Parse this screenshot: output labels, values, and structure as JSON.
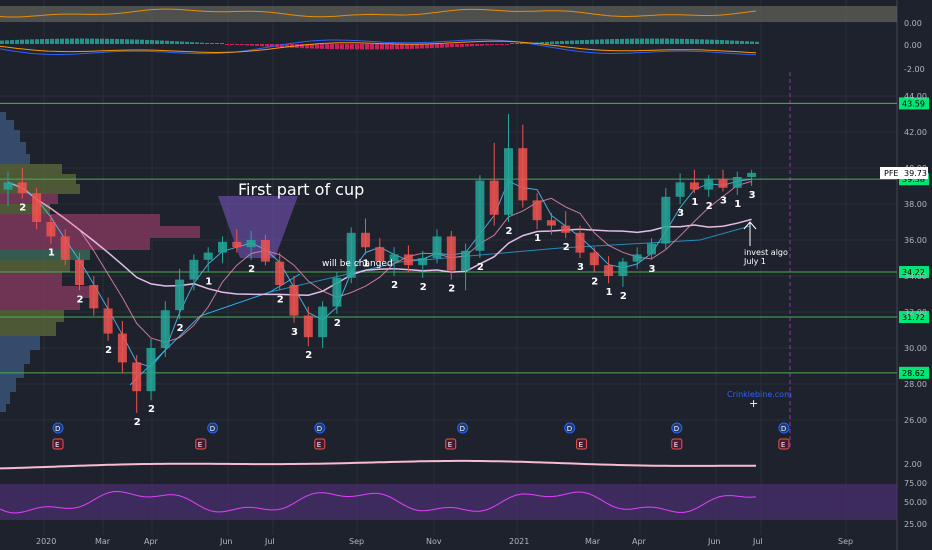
{
  "chart_data": {
    "type": "candlestick",
    "symbol": "PFE",
    "price_axis": {
      "ylim": [
        25.0,
        45.0
      ],
      "ticks": [
        44.0,
        42.0,
        40.0,
        38.0,
        36.0,
        34.0,
        32.0,
        30.0,
        28.0,
        26.0
      ]
    },
    "time_axis": {
      "labels": [
        "2020",
        "Mar",
        "Apr",
        "Jun",
        "Jul",
        "Sep",
        "Nov",
        "2021",
        "Mar",
        "Apr",
        "Jun",
        "Jul",
        "Sep"
      ]
    },
    "horizontal_levels": [
      {
        "value": 43.59,
        "label": "43.59"
      },
      {
        "value": 39.38,
        "label": "39.38"
      },
      {
        "value": 34.22,
        "label": "34.22"
      },
      {
        "value": 31.72,
        "label": "31.72"
      },
      {
        "value": 28.62,
        "label": "28.62"
      }
    ],
    "last_price": {
      "symbol": "PFE",
      "value": "39.73"
    },
    "candles": [
      {
        "t": 0,
        "o": 38.8,
        "h": 39.8,
        "l": 37.9,
        "c": 39.2
      },
      {
        "t": 1,
        "o": 39.2,
        "h": 40.0,
        "l": 38.3,
        "c": 38.6
      },
      {
        "t": 2,
        "o": 38.6,
        "h": 38.9,
        "l": 36.6,
        "c": 37.0
      },
      {
        "t": 3,
        "o": 37.0,
        "h": 37.4,
        "l": 35.8,
        "c": 36.2
      },
      {
        "t": 4,
        "o": 36.2,
        "h": 36.6,
        "l": 34.6,
        "c": 34.9
      },
      {
        "t": 5,
        "o": 34.9,
        "h": 35.3,
        "l": 33.2,
        "c": 33.5
      },
      {
        "t": 6,
        "o": 33.5,
        "h": 34.0,
        "l": 31.8,
        "c": 32.2
      },
      {
        "t": 7,
        "o": 32.2,
        "h": 32.8,
        "l": 30.4,
        "c": 30.8
      },
      {
        "t": 8,
        "o": 30.8,
        "h": 31.5,
        "l": 28.6,
        "c": 29.2
      },
      {
        "t": 9,
        "o": 29.2,
        "h": 29.6,
        "l": 26.4,
        "c": 27.6
      },
      {
        "t": 10,
        "o": 27.6,
        "h": 30.5,
        "l": 27.1,
        "c": 30.0
      },
      {
        "t": 11,
        "o": 30.0,
        "h": 32.6,
        "l": 29.5,
        "c": 32.1
      },
      {
        "t": 12,
        "o": 32.1,
        "h": 34.4,
        "l": 31.6,
        "c": 33.8
      },
      {
        "t": 13,
        "o": 33.8,
        "h": 35.2,
        "l": 33.2,
        "c": 34.9
      },
      {
        "t": 14,
        "o": 34.9,
        "h": 35.6,
        "l": 34.2,
        "c": 35.3
      },
      {
        "t": 15,
        "o": 35.3,
        "h": 36.2,
        "l": 34.7,
        "c": 35.9
      },
      {
        "t": 16,
        "o": 35.9,
        "h": 36.6,
        "l": 35.3,
        "c": 35.6
      },
      {
        "t": 17,
        "o": 35.6,
        "h": 36.5,
        "l": 34.9,
        "c": 36.0
      },
      {
        "t": 18,
        "o": 36.0,
        "h": 36.3,
        "l": 34.6,
        "c": 34.8
      },
      {
        "t": 19,
        "o": 34.8,
        "h": 35.3,
        "l": 33.2,
        "c": 33.5
      },
      {
        "t": 20,
        "o": 33.5,
        "h": 34.0,
        "l": 31.4,
        "c": 31.8
      },
      {
        "t": 21,
        "o": 31.8,
        "h": 32.3,
        "l": 30.1,
        "c": 30.6
      },
      {
        "t": 22,
        "o": 30.6,
        "h": 32.6,
        "l": 30.0,
        "c": 32.3
      },
      {
        "t": 23,
        "o": 32.3,
        "h": 34.2,
        "l": 31.9,
        "c": 33.9
      },
      {
        "t": 24,
        "o": 33.9,
        "h": 36.7,
        "l": 33.6,
        "c": 36.4
      },
      {
        "t": 25,
        "o": 36.4,
        "h": 37.2,
        "l": 35.2,
        "c": 35.6
      },
      {
        "t": 26,
        "o": 35.6,
        "h": 36.1,
        "l": 34.4,
        "c": 34.8
      },
      {
        "t": 27,
        "o": 34.8,
        "h": 35.6,
        "l": 34.0,
        "c": 35.2
      },
      {
        "t": 28,
        "o": 35.2,
        "h": 35.7,
        "l": 34.2,
        "c": 34.6
      },
      {
        "t": 29,
        "o": 34.6,
        "h": 35.4,
        "l": 33.9,
        "c": 35.0
      },
      {
        "t": 30,
        "o": 35.0,
        "h": 36.6,
        "l": 34.7,
        "c": 36.2
      },
      {
        "t": 31,
        "o": 36.2,
        "h": 36.5,
        "l": 33.8,
        "c": 34.3
      },
      {
        "t": 32,
        "o": 34.3,
        "h": 35.8,
        "l": 33.2,
        "c": 35.4
      },
      {
        "t": 33,
        "o": 35.4,
        "h": 39.6,
        "l": 35.0,
        "c": 39.3
      },
      {
        "t": 34,
        "o": 39.3,
        "h": 41.4,
        "l": 36.8,
        "c": 37.4
      },
      {
        "t": 35,
        "o": 37.4,
        "h": 43.0,
        "l": 37.0,
        "c": 41.1
      },
      {
        "t": 36,
        "o": 41.1,
        "h": 42.4,
        "l": 37.8,
        "c": 38.2
      },
      {
        "t": 37,
        "o": 38.2,
        "h": 38.6,
        "l": 36.6,
        "c": 37.1
      },
      {
        "t": 38,
        "o": 37.1,
        "h": 37.5,
        "l": 36.3,
        "c": 36.8
      },
      {
        "t": 39,
        "o": 36.8,
        "h": 37.6,
        "l": 36.1,
        "c": 36.4
      },
      {
        "t": 40,
        "o": 36.4,
        "h": 36.8,
        "l": 35.0,
        "c": 35.3
      },
      {
        "t": 41,
        "o": 35.3,
        "h": 35.6,
        "l": 34.2,
        "c": 34.6
      },
      {
        "t": 42,
        "o": 34.6,
        "h": 35.1,
        "l": 33.6,
        "c": 34.0
      },
      {
        "t": 43,
        "o": 34.0,
        "h": 35.0,
        "l": 33.4,
        "c": 34.8
      },
      {
        "t": 44,
        "o": 34.8,
        "h": 35.6,
        "l": 34.4,
        "c": 35.2
      },
      {
        "t": 45,
        "o": 35.2,
        "h": 36.1,
        "l": 34.9,
        "c": 35.8
      },
      {
        "t": 46,
        "o": 35.8,
        "h": 38.9,
        "l": 35.5,
        "c": 38.4
      },
      {
        "t": 47,
        "o": 38.4,
        "h": 39.7,
        "l": 38.0,
        "c": 39.2
      },
      {
        "t": 48,
        "o": 39.2,
        "h": 39.9,
        "l": 38.6,
        "c": 38.8
      },
      {
        "t": 49,
        "o": 38.8,
        "h": 39.6,
        "l": 38.4,
        "c": 39.4
      },
      {
        "t": 50,
        "o": 39.4,
        "h": 39.9,
        "l": 38.7,
        "c": 38.9
      },
      {
        "t": 51,
        "o": 38.9,
        "h": 39.8,
        "l": 38.5,
        "c": 39.5
      },
      {
        "t": 52,
        "o": 39.5,
        "h": 39.9,
        "l": 39.0,
        "c": 39.73
      }
    ],
    "candle_annotations": [
      {
        "t": 1,
        "text": "2"
      },
      {
        "t": 3,
        "text": "1"
      },
      {
        "t": 5,
        "text": "2"
      },
      {
        "t": 7,
        "text": "2"
      },
      {
        "t": 9,
        "text": "2"
      },
      {
        "t": 10,
        "text": "2"
      },
      {
        "t": 12,
        "text": "2"
      },
      {
        "t": 14,
        "text": "1"
      },
      {
        "t": 17,
        "text": "2"
      },
      {
        "t": 19,
        "text": "2"
      },
      {
        "t": 20,
        "text": "3"
      },
      {
        "t": 21,
        "text": "2"
      },
      {
        "t": 23,
        "text": "2"
      },
      {
        "t": 25,
        "text": "1"
      },
      {
        "t": 27,
        "text": "2"
      },
      {
        "t": 29,
        "text": "2"
      },
      {
        "t": 31,
        "text": "2"
      },
      {
        "t": 33,
        "text": "2"
      },
      {
        "t": 35,
        "text": "2"
      },
      {
        "t": 37,
        "text": "1"
      },
      {
        "t": 39,
        "text": "2"
      },
      {
        "t": 40,
        "text": "3"
      },
      {
        "t": 41,
        "text": "2"
      },
      {
        "t": 42,
        "text": "1"
      },
      {
        "t": 43,
        "text": "2"
      },
      {
        "t": 45,
        "text": "3"
      },
      {
        "t": 47,
        "text": "3"
      },
      {
        "t": 48,
        "text": "1"
      },
      {
        "t": 49,
        "text": "2"
      },
      {
        "t": 50,
        "text": "3"
      },
      {
        "t": 51,
        "text": "1"
      },
      {
        "t": 52,
        "text": "3"
      }
    ],
    "annotations": {
      "cup_label": "First part of cup",
      "trend_label": "will be changed",
      "invest_label_line1": "invest algo",
      "invest_label_line2": "July 1",
      "watermark": "Crinklebine.com"
    },
    "event_markers": [
      {
        "t": 2,
        "text": "D",
        "kind": "dividend"
      },
      {
        "t": 2,
        "text": "E",
        "kind": "earnings"
      },
      {
        "t": 14,
        "text": "E",
        "kind": "earnings"
      },
      {
        "t": 15,
        "text": "D",
        "kind": "dividend"
      },
      {
        "t": 24,
        "text": "D",
        "kind": "dividend"
      },
      {
        "t": 24,
        "text": "E",
        "kind": "earnings"
      },
      {
        "t": 35,
        "text": "E",
        "kind": "earnings"
      },
      {
        "t": 36,
        "text": "D",
        "kind": "dividend"
      },
      {
        "t": 45,
        "text": "D",
        "kind": "dividend"
      },
      {
        "t": 46,
        "text": "E",
        "kind": "earnings"
      },
      {
        "t": 54,
        "text": "D",
        "kind": "dividend"
      },
      {
        "t": 54,
        "text": "E",
        "kind": "earnings"
      },
      {
        "t": 63,
        "text": "D",
        "kind": "dividend"
      },
      {
        "t": 63,
        "text": "E",
        "kind": "earnings"
      }
    ],
    "top_indicator": {
      "tick": "0.00"
    },
    "macd": {
      "ticks": [
        "0.00",
        "-2.00"
      ]
    },
    "atr": {
      "tick": "2.00"
    },
    "rsi": {
      "ticks": [
        "75.00",
        "50.00",
        "25.00"
      ]
    },
    "colors": {
      "background": "#1e222d",
      "bull": "#26a69a",
      "bear": "#ef5350",
      "level_line": "#4caf50",
      "level_label_bg": "#00e676",
      "macd_line": "#2962ff",
      "signal_line": "#ff9800",
      "cup_fill": "#7e57c2",
      "rsi_band": "#4a2f6e",
      "rsi_line": "#e040fb",
      "atr_line": "#f8bbd0",
      "ma_line": "#e1bee7"
    }
  }
}
